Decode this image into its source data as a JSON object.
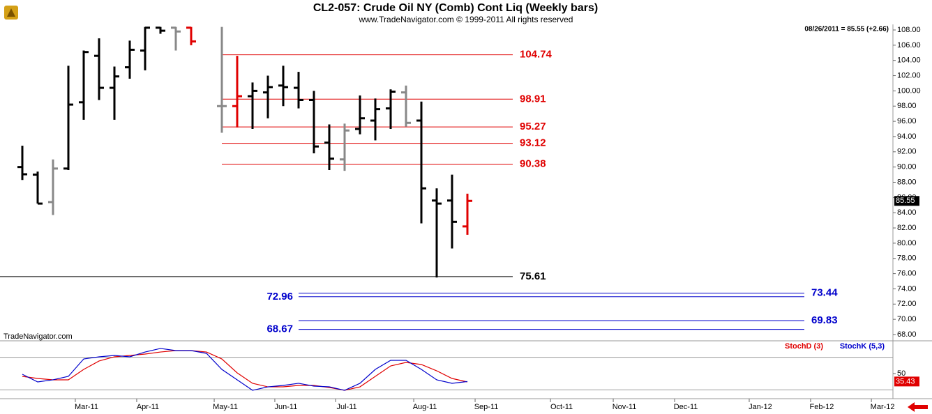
{
  "chart_data": [
    {
      "type": "ohlc",
      "title": "CL2-057:  Crude Oil NY (Comb) Cont Liq  (Weekly bars)",
      "subtitle": "www.TradeNavigator.com © 1999-2011 All rights reserved",
      "quote": "08/26/2011 = 85.55 (+2.66)",
      "watermark": "TradeNavigator.com",
      "last_price": 85.55,
      "categories": [
        null,
        null,
        null,
        null,
        null,
        null,
        null,
        null,
        null,
        null,
        null,
        null,
        null,
        null,
        null,
        null,
        null,
        null,
        null,
        null,
        null,
        null,
        null,
        null,
        null,
        null,
        null,
        null,
        null,
        null
      ],
      "open": [
        90.0,
        89.0,
        85.4,
        89.8,
        98.5,
        104.6,
        100.4,
        103.1,
        105.3,
        108.3,
        108.3,
        108.3,
        null,
        98.0,
        98.0,
        99.3,
        99.8,
        100.7,
        100.4,
        98.8,
        93.2,
        91.0,
        95.0,
        96.1,
        97.7,
        99.8,
        96.1,
        85.6,
        85.6,
        82.2
      ],
      "high": [
        92.8,
        89.4,
        91.0,
        103.3,
        105.3,
        106.9,
        103.2,
        106.6,
        108.4,
        108.4,
        108.4,
        108.4,
        null,
        108.4,
        104.6,
        101.1,
        102.0,
        103.3,
        102.5,
        100.0,
        95.6,
        95.7,
        99.4,
        99.0,
        100.2,
        100.7,
        98.6,
        87.2,
        89.0,
        86.5
      ],
      "low": [
        88.3,
        85.2,
        83.7,
        89.6,
        96.2,
        98.8,
        96.2,
        101.6,
        102.7,
        107.5,
        105.3,
        106.0,
        null,
        94.5,
        95.2,
        95.0,
        96.4,
        98.0,
        97.7,
        91.8,
        89.6,
        89.5,
        94.3,
        93.5,
        95.0,
        95.3,
        82.6,
        75.5,
        79.3,
        81.1
      ],
      "close": [
        89.05,
        85.2,
        89.8,
        98.2,
        105.1,
        100.4,
        101.9,
        105.4,
        108.3,
        107.9,
        107.8,
        106.5,
        null,
        98.0,
        99.3,
        100.0,
        100.5,
        100.5,
        98.8,
        92.7,
        91.1,
        94.8,
        96.4,
        97.6,
        99.9,
        95.8,
        87.2,
        85.2,
        82.8,
        85.55
      ],
      "colors": [
        "#000",
        "#000",
        "#888",
        "#000",
        "#000",
        "#000",
        "#000",
        "#000",
        "#000",
        "#000",
        "#888",
        "#e00000",
        null,
        "#888",
        "#e00000",
        "#000",
        "#000",
        "#000",
        "#000",
        "#000",
        "#000",
        "#888",
        "#000",
        "#000",
        "#000",
        "#888",
        "#000",
        "#000",
        "#000",
        "#e00000"
      ],
      "levels": [
        {
          "value": 104.74,
          "color": "#e00000",
          "label_side": "right"
        },
        {
          "value": 98.91,
          "color": "#e00000",
          "label_side": "right"
        },
        {
          "value": 95.27,
          "color": "#e00000",
          "label_side": "right"
        },
        {
          "value": 93.12,
          "color": "#e00000",
          "label_side": "right"
        },
        {
          "value": 90.38,
          "color": "#e00000",
          "label_side": "right"
        },
        {
          "value": 75.61,
          "color": "#000000",
          "label_side": "right"
        },
        {
          "value": 73.44,
          "color": "#0000cc",
          "label_side": "right"
        },
        {
          "value": 72.96,
          "color": "#0000cc",
          "label_side": "left"
        },
        {
          "value": 69.83,
          "color": "#0000cc",
          "label_side": "right"
        },
        {
          "value": 68.67,
          "color": "#0000cc",
          "label_side": "left"
        }
      ],
      "ylim": [
        67.0,
        108.8
      ],
      "yticks": [
        {
          "value": 68,
          "label": "68.00"
        },
        {
          "value": 70,
          "label": "70.00"
        },
        {
          "value": 72,
          "label": "72.00"
        },
        {
          "value": 74,
          "label": "74.00"
        },
        {
          "value": 76,
          "label": "76.00"
        },
        {
          "value": 78,
          "label": "78.00"
        },
        {
          "value": 80,
          "label": "80.00"
        },
        {
          "value": 82,
          "label": "82.00"
        },
        {
          "value": 84,
          "label": "84.00"
        },
        {
          "value": 86,
          "label": "86.00"
        },
        {
          "value": 88,
          "label": "88.00"
        },
        {
          "value": 90,
          "label": "90.00"
        },
        {
          "value": 92,
          "label": "92.00"
        },
        {
          "value": 94,
          "label": "94.00"
        },
        {
          "value": 96,
          "label": "96.00"
        },
        {
          "value": 98,
          "label": "98.00"
        },
        {
          "value": 100,
          "label": "100.00"
        },
        {
          "value": 102,
          "label": "102.00"
        },
        {
          "value": 104,
          "label": "104.00"
        },
        {
          "value": 106,
          "label": "106.00"
        },
        {
          "value": 108,
          "label": "108.00"
        }
      ]
    },
    {
      "type": "line",
      "last_value": 35.43,
      "categories": [
        null,
        null,
        null,
        null,
        null,
        null,
        null,
        null,
        null,
        null,
        null,
        null,
        null,
        null,
        null,
        null,
        null,
        null,
        null,
        null,
        null,
        null,
        null,
        null,
        null,
        null,
        null,
        null,
        null,
        null
      ],
      "series": [
        {
          "name": "StochD (3)",
          "color": "#e00000",
          "values": [
            44.9,
            41.0,
            38.5,
            38.5,
            57.7,
            73.1,
            80.8,
            83.3,
            85.9,
            89.7,
            92.3,
            92.3,
            89.7,
            76.9,
            51.3,
            32.1,
            25.6,
            25.6,
            28.2,
            28.2,
            24.4,
            19.2,
            25.6,
            44.9,
            64.1,
            70.5,
            66.7,
            55.1,
            41.0,
            34.6
          ]
        },
        {
          "name": "StochK (5,3)",
          "color": "#0000cc",
          "values": [
            48.7,
            34.6,
            38.5,
            44.9,
            76.9,
            80.8,
            83.3,
            80.8,
            89.7,
            96.2,
            92.3,
            92.3,
            87.2,
            57.7,
            38.5,
            19.2,
            25.6,
            28.2,
            32.1,
            26.9,
            25.6,
            19.2,
            32.1,
            57.7,
            74.4,
            74.4,
            57.7,
            38.5,
            32.1,
            35.43
          ]
        }
      ],
      "levels": [
        20,
        80
      ],
      "ylim": [
        0,
        100
      ],
      "yticks": [
        50
      ],
      "xticks": [
        {
          "value": 4.18,
          "label": "Mar-11"
        },
        {
          "value": 8.18,
          "label": "Apr-11"
        },
        {
          "value": 13.23,
          "label": "May-11"
        },
        {
          "value": 17.18,
          "label": "Jun-11"
        },
        {
          "value": 21.14,
          "label": "Jul-11"
        },
        {
          "value": 26.23,
          "label": "Aug-11"
        },
        {
          "value": 30.23,
          "label": "Sep-11"
        },
        {
          "value": 35.14,
          "label": "Oct-11"
        },
        {
          "value": 39.23,
          "label": "Nov-11"
        },
        {
          "value": 43.23,
          "label": "Dec-11"
        },
        {
          "value": 48.09,
          "label": "Jan-12"
        },
        {
          "value": 52.09,
          "label": "Feb-12"
        },
        {
          "value": 56.05,
          "label": "Mar-12"
        }
      ]
    }
  ]
}
